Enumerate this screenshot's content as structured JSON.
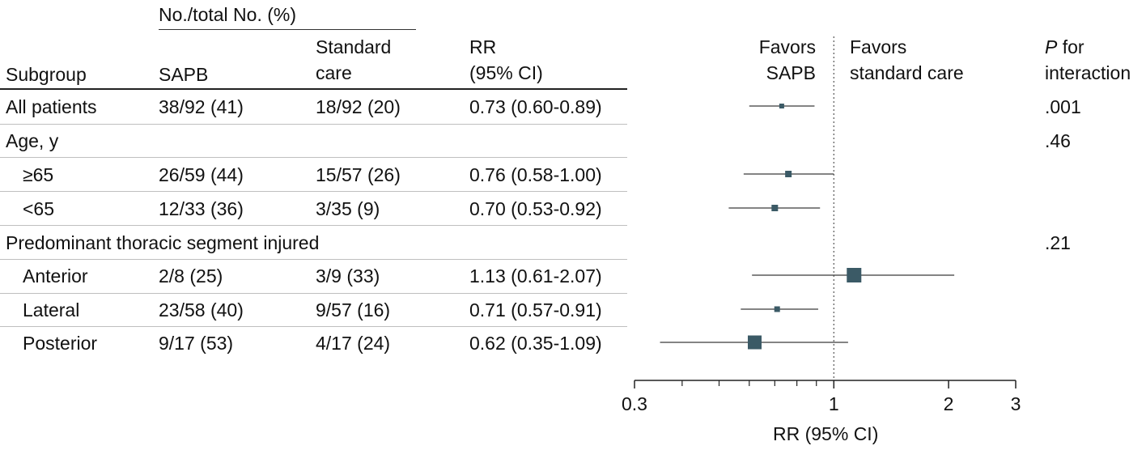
{
  "header": {
    "group_label": "No./total No. (%)",
    "col_subgroup": "Subgroup",
    "col_sapb": "SAPB",
    "col_standard_1": "Standard",
    "col_standard_2": "care",
    "col_rr_1": "RR",
    "col_rr_2": "(95% CI)",
    "favors_left_1": "Favors",
    "favors_left_2": "SAPB",
    "favors_right_1": "Favors",
    "favors_right_2": "standard care",
    "p_1_italic": "P",
    "p_1_rest": " for",
    "p_2": "interaction"
  },
  "rows": [
    {
      "label": "All patients",
      "sapb": "38/92 (41)",
      "standard": "18/92 (20)",
      "rr": "0.73 (0.60-0.89)",
      "p": ".001"
    },
    {
      "label": "Age, y",
      "sapb": "",
      "standard": "",
      "rr": "",
      "p": ".46"
    },
    {
      "label": "≥65",
      "sapb": "26/59 (44)",
      "standard": "15/57 (26)",
      "rr": "0.76 (0.58-1.00)",
      "p": ""
    },
    {
      "label": "<65",
      "sapb": "12/33 (36)",
      "standard": "3/35 (9)",
      "rr": "0.70 (0.53-0.92)",
      "p": ""
    },
    {
      "label": "Predominant thoracic segment injured",
      "sapb": "",
      "standard": "",
      "rr": "",
      "p": ".21"
    },
    {
      "label": "Anterior",
      "sapb": "2/8 (25)",
      "standard": "3/9 (33)",
      "rr": "1.13 (0.61-2.07)",
      "p": ""
    },
    {
      "label": "Lateral",
      "sapb": "23/58 (40)",
      "standard": "9/57 (16)",
      "rr": "0.71 (0.57-0.91)",
      "p": ""
    },
    {
      "label": "Posterior",
      "sapb": "9/17 (53)",
      "standard": "4/17 (24)",
      "rr": "0.62 (0.35-1.09)",
      "p": ""
    }
  ],
  "chart_data": {
    "type": "scatter",
    "scale": "log",
    "xlim": [
      0.3,
      3
    ],
    "xlabel": "RR (95% CI)",
    "reference_line": 1,
    "tick_labels": [
      "0.3",
      "1",
      "2",
      "3"
    ],
    "tick_values_labeled": [
      0.3,
      1,
      2,
      3
    ],
    "tick_values_minor": [
      0.4,
      0.5,
      0.6,
      0.7,
      0.8,
      0.9
    ],
    "marker_color": "#3b5a66",
    "points": [
      {
        "row": 0,
        "rr": 0.73,
        "lo": 0.6,
        "hi": 0.89,
        "marker": 6
      },
      {
        "row": 2,
        "rr": 0.76,
        "lo": 0.58,
        "hi": 1.0,
        "marker": 8
      },
      {
        "row": 3,
        "rr": 0.7,
        "lo": 0.53,
        "hi": 0.92,
        "marker": 8
      },
      {
        "row": 5,
        "rr": 1.13,
        "lo": 0.61,
        "hi": 2.07,
        "marker": 18
      },
      {
        "row": 6,
        "rr": 0.71,
        "lo": 0.57,
        "hi": 0.91,
        "marker": 7
      },
      {
        "row": 7,
        "rr": 0.62,
        "lo": 0.35,
        "hi": 1.09,
        "marker": 17
      }
    ]
  }
}
